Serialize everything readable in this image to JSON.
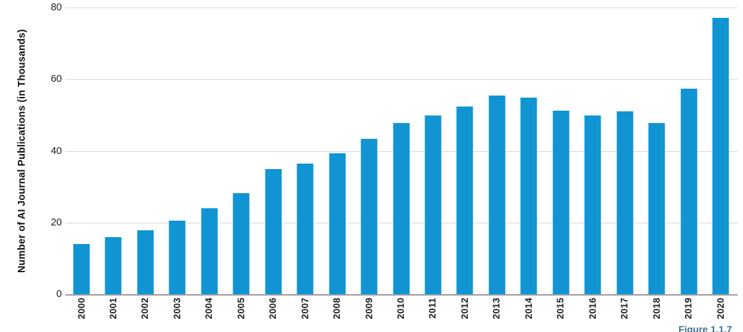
{
  "caption": {
    "text": "Figure 1.1.7"
  },
  "colors": {
    "bar": "#1194d2",
    "bar_edge": "#8ecbe9",
    "gridline": "#d9d9d9",
    "axis_line": "#9c9c9c",
    "text": "#1f1f1f",
    "caption": "#41708d"
  },
  "chart_data": {
    "type": "bar",
    "title": "",
    "xlabel": "",
    "ylabel": "Number of AI Journal Publications (in Thousands)",
    "categories": [
      "2000",
      "2001",
      "2002",
      "2003",
      "2004",
      "2005",
      "2006",
      "2007",
      "2008",
      "2009",
      "2010",
      "2011",
      "2012",
      "2013",
      "2014",
      "2015",
      "2016",
      "2017",
      "2018",
      "2019",
      "2020"
    ],
    "values": [
      14.1,
      16.0,
      17.9,
      20.6,
      23.9,
      28.2,
      35.0,
      36.5,
      39.3,
      43.4,
      47.8,
      49.9,
      52.4,
      55.4,
      54.9,
      51.2,
      49.9,
      51.1,
      47.8,
      57.4,
      77.1
    ],
    "ylim": [
      0,
      80
    ],
    "yticks": [
      0,
      20,
      40,
      60,
      80
    ],
    "grid": "horizontal",
    "legend": "none",
    "bar_color": "#1194d2"
  }
}
